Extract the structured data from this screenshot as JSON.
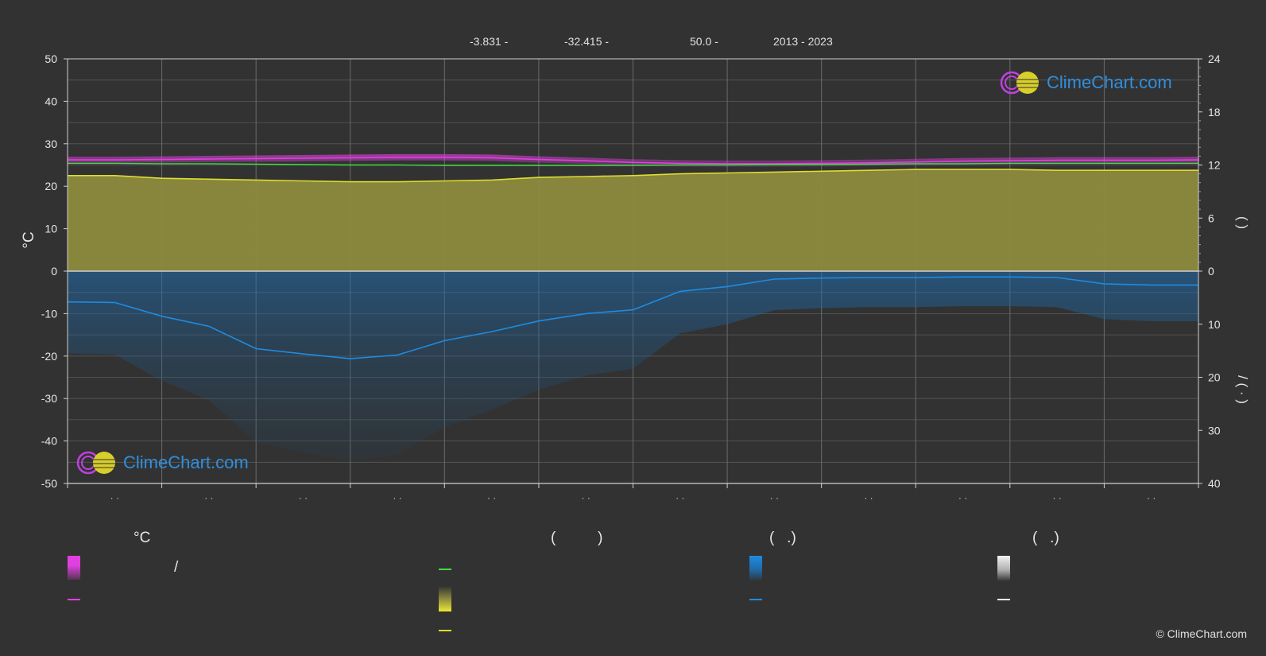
{
  "header": {
    "lat": "-3.831 -",
    "lon": "-32.415 -",
    "elev": "50.0 -",
    "years": "2013 - 2023"
  },
  "logo_text": "ClimeChart.com",
  "copyright": "© ClimeChart.com",
  "legend": {
    "col1_title": "°C",
    "col2_title": "(          )",
    "col3_title": "(   .)",
    "col4_title": "(   .)",
    "col1_slash": "/"
  },
  "colors": {
    "background": "#323232",
    "max_temp": "#e040e0",
    "mean_temp": "#40dd40",
    "sunshine": "#dddd30",
    "sunshine_fill": "#8d8a3e",
    "precip": "#1f8be0",
    "precip_fill": "#244a6a",
    "grid": "#5a5a5a"
  },
  "chart_data": {
    "type": "area",
    "title": "",
    "ylabel_left": "°C",
    "ylabel_right_top": "(  )",
    "ylabel_right_bottom": "/ ( · )",
    "ylim_left": [
      -50,
      50
    ],
    "yticks_left": [
      "50",
      "40",
      "30",
      "20",
      "10",
      "0",
      "-10",
      "-20",
      "-30",
      "-40",
      "-50"
    ],
    "yticks_right_top": [
      "24",
      "18",
      "12",
      "6",
      "0"
    ],
    "yticks_right_bottom": [
      "0",
      "10",
      "20",
      "30",
      "40"
    ],
    "month_tick_label": "· ·",
    "months": 12,
    "x": [
      0,
      0.5,
      1,
      1.5,
      2,
      2.5,
      3,
      3.5,
      4,
      4.5,
      5,
      5.5,
      6,
      6.5,
      7,
      7.5,
      8,
      8.5,
      9,
      9.5,
      10,
      10.5,
      11,
      11.5,
      12
    ],
    "series": [
      {
        "key": "max_temp",
        "unit": "°C",
        "values": [
          26.2,
          26.2,
          26.3,
          26.4,
          26.5,
          26.6,
          26.7,
          26.8,
          26.8,
          26.7,
          26.3,
          26.0,
          25.6,
          25.4,
          25.3,
          25.3,
          25.4,
          25.5,
          25.7,
          25.9,
          26.0,
          26.1,
          26.1,
          26.1,
          26.2
        ]
      },
      {
        "key": "mean_temp",
        "unit": "°C",
        "values": [
          25.4,
          25.4,
          25.3,
          25.3,
          25.2,
          25.1,
          25.0,
          25.0,
          24.9,
          24.9,
          24.9,
          24.9,
          24.9,
          25.0,
          25.0,
          25.1,
          25.1,
          25.2,
          25.3,
          25.3,
          25.4,
          25.4,
          25.4,
          25.4,
          25.4
        ]
      },
      {
        "key": "sunshine_hours",
        "unit": "h",
        "values": [
          10.8,
          10.8,
          10.5,
          10.4,
          10.3,
          10.2,
          10.1,
          10.1,
          10.2,
          10.3,
          10.6,
          10.7,
          10.8,
          11.0,
          11.1,
          11.2,
          11.3,
          11.4,
          11.5,
          11.5,
          11.5,
          11.4,
          11.4,
          11.4,
          11.4
        ]
      },
      {
        "key": "precipitation",
        "unit": "mm/day",
        "values": [
          5.8,
          5.9,
          8.5,
          10.4,
          14.6,
          15.6,
          16.5,
          15.8,
          13.1,
          11.4,
          9.4,
          8.0,
          7.3,
          3.8,
          2.9,
          1.5,
          1.3,
          1.2,
          1.2,
          1.1,
          1.1,
          1.2,
          2.4,
          2.6,
          2.6
        ]
      }
    ]
  }
}
